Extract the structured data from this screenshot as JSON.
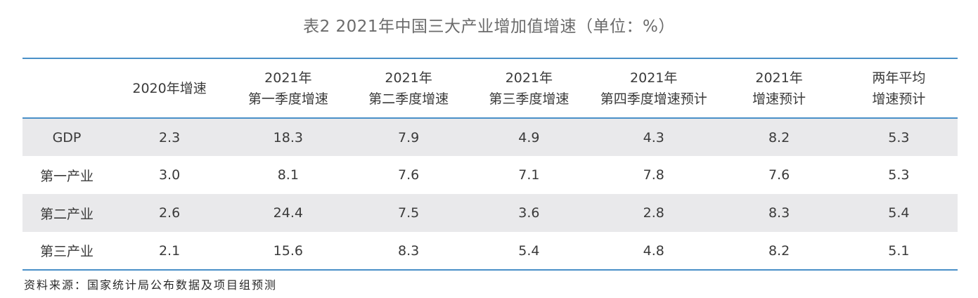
{
  "title": "表2 2021年中国三大产业增加值增速（单位：%）",
  "table": {
    "headers": [
      {
        "line1": "",
        "line2": ""
      },
      {
        "line1": "2020年增速",
        "line2": ""
      },
      {
        "line1": "2021年",
        "line2": "第一季度增速"
      },
      {
        "line1": "2021年",
        "line2": "第二季度增速"
      },
      {
        "line1": "2021年",
        "line2": "第三季度增速"
      },
      {
        "line1": "2021年",
        "line2": "第四季度增速预计"
      },
      {
        "line1": "2021年",
        "line2": "增速预计"
      },
      {
        "line1": "两年平均",
        "line2": "增速预计"
      }
    ],
    "rows": [
      {
        "label": "GDP",
        "cells": [
          "2.3",
          "18.3",
          "7.9",
          "4.9",
          "4.3",
          "8.2",
          "5.3"
        ]
      },
      {
        "label": "第一产业",
        "cells": [
          "3.0",
          "8.1",
          "7.6",
          "7.1",
          "7.8",
          "7.6",
          "5.3"
        ]
      },
      {
        "label": "第二产业",
        "cells": [
          "2.6",
          "24.4",
          "7.5",
          "3.6",
          "2.8",
          "8.3",
          "5.4"
        ]
      },
      {
        "label": "第三产业",
        "cells": [
          "2.1",
          "15.6",
          "8.3",
          "5.4",
          "4.8",
          "8.2",
          "5.1"
        ]
      }
    ]
  },
  "source": "资料来源：国家统计局公布数据及项目组预测",
  "colors": {
    "rule": "#4a90c8",
    "shade": "#e9e9eb"
  }
}
